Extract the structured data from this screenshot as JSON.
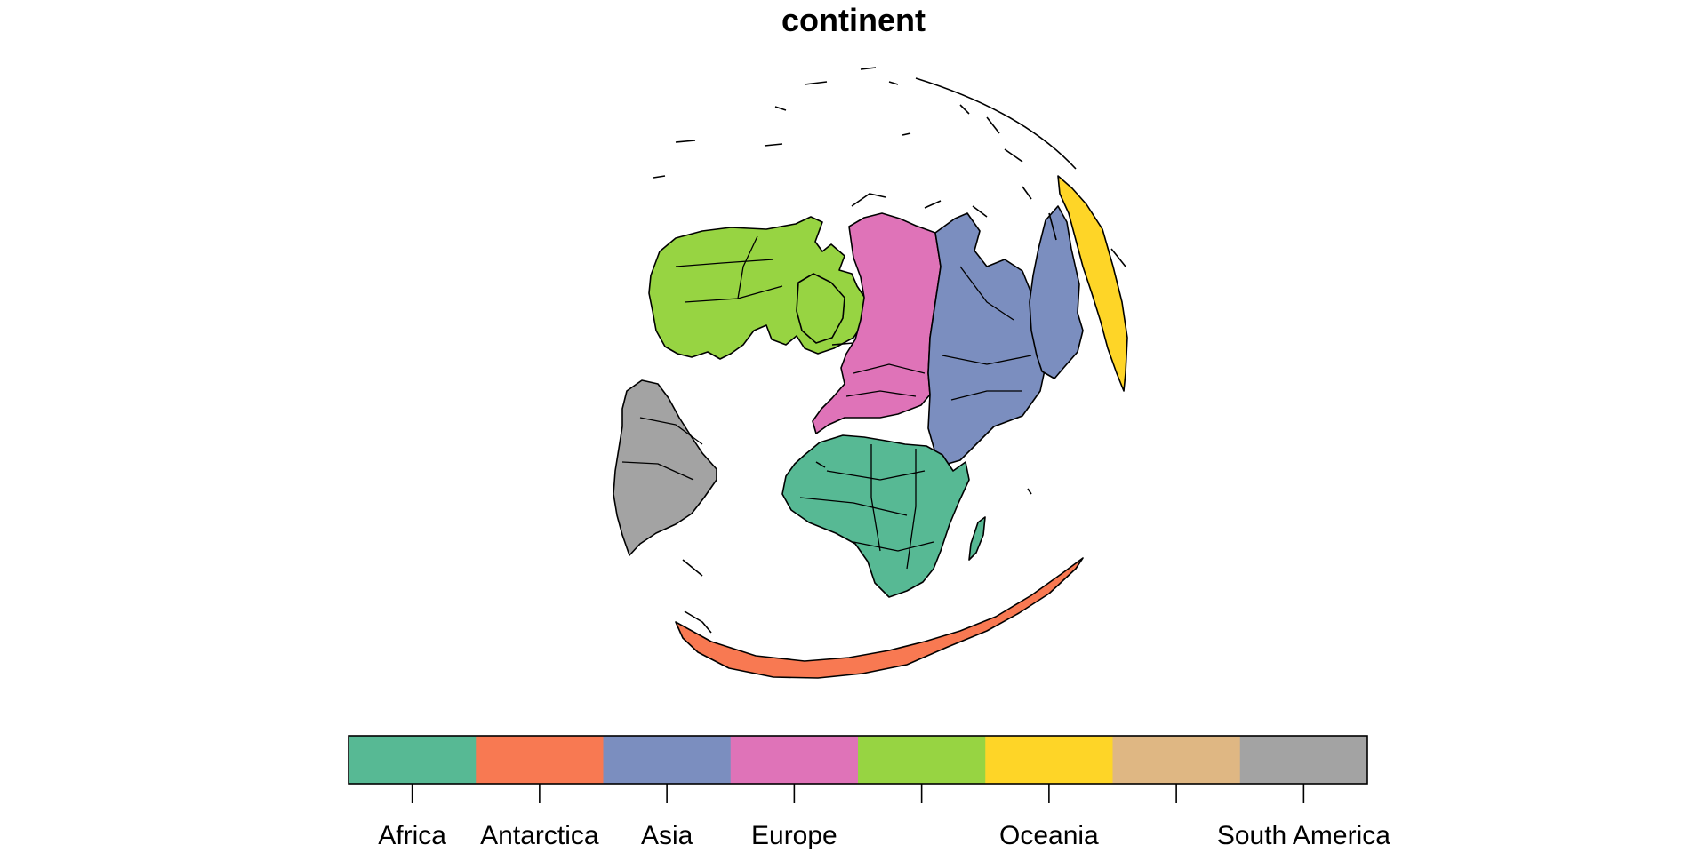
{
  "title": "continent",
  "palette": {
    "africa": "#57b994",
    "antarctica": "#f87952",
    "asia": "#7b8ebf",
    "europe": "#df73b8",
    "north_america": "#97d442",
    "oceania": "#fed527",
    "seven_seas": "#dfb783",
    "south_america": "#a3a3a3"
  },
  "legend": {
    "swatch_colors": [
      "#57b994",
      "#f87952",
      "#7b8ebf",
      "#df73b8",
      "#97d442",
      "#fed527",
      "#dfb783",
      "#a3a3a3"
    ],
    "tick_labels": [
      "Africa",
      "Antarctica",
      "Asia",
      "Europe",
      "",
      "Oceania",
      "",
      "South America"
    ]
  }
}
